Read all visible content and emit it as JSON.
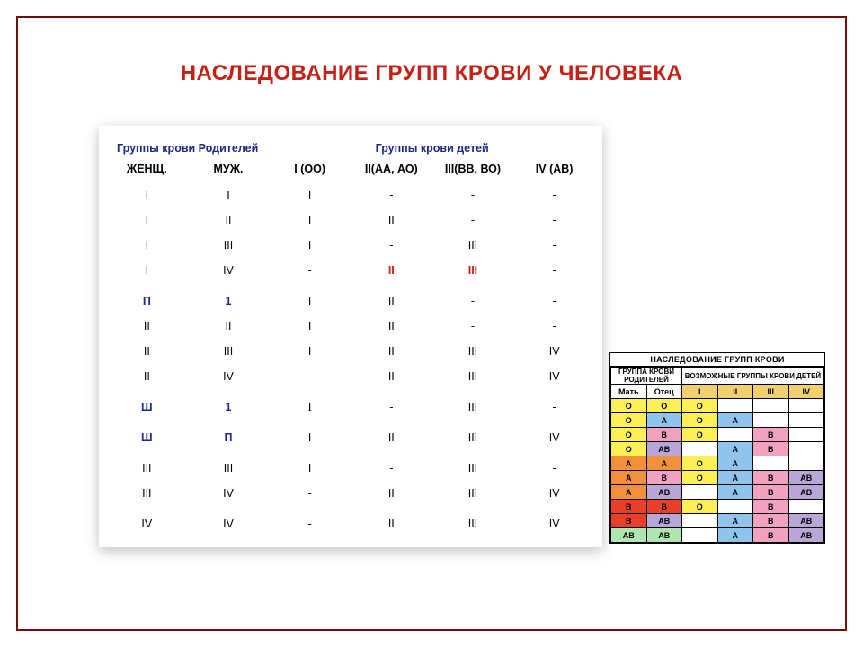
{
  "colors": {
    "title_red": "#c81e14",
    "header_blue": "#1a2a8a",
    "cell_blue": "#1a2a8a",
    "cell_red": "#c81e14",
    "side_yellow": "#fdf056",
    "side_lblue": "#8fc5ec",
    "side_pink": "#f2a2c0",
    "side_purple": "#b8a6d6",
    "side_orange": "#f2903a",
    "side_red": "#e83e2a",
    "side_green": "#aee6b0",
    "side_roman_bg": "#f2d070"
  },
  "title": "НАСЛЕДОВАНИЕ ГРУПП КРОВИ У ЧЕЛОВЕКА",
  "group_headers": {
    "parents": "Группы крови Родителей",
    "children": "Группы крови детей"
  },
  "col_headers": [
    "ЖЕНЩ.",
    "МУЖ.",
    "I (ОО)",
    "II(АА, АО)",
    "III(ВВ, ВО)",
    "IV (АВ)"
  ],
  "rows": [
    [
      {
        "t": "I"
      },
      {
        "t": "I"
      },
      {
        "t": "I"
      },
      {
        "t": "-"
      },
      {
        "t": "-"
      },
      {
        "t": "-"
      }
    ],
    [
      {
        "t": "I"
      },
      {
        "t": "II"
      },
      {
        "t": "I"
      },
      {
        "t": "II"
      },
      {
        "t": "-"
      },
      {
        "t": "-"
      }
    ],
    [
      {
        "t": "I"
      },
      {
        "t": "III"
      },
      {
        "t": "I"
      },
      {
        "t": "-"
      },
      {
        "t": "III"
      },
      {
        "t": "-"
      }
    ],
    [
      {
        "t": "I"
      },
      {
        "t": "IV"
      },
      {
        "t": "-"
      },
      {
        "t": "II",
        "c": "red"
      },
      {
        "t": "III",
        "c": "red"
      },
      {
        "t": "-"
      }
    ],
    [
      {
        "t": "П",
        "c": "blue"
      },
      {
        "t": "1",
        "c": "blue"
      },
      {
        "t": "I"
      },
      {
        "t": "II"
      },
      {
        "t": "-"
      },
      {
        "t": "-"
      }
    ],
    [
      {
        "t": "II"
      },
      {
        "t": "II"
      },
      {
        "t": "I"
      },
      {
        "t": "II"
      },
      {
        "t": "-"
      },
      {
        "t": "-"
      }
    ],
    [
      {
        "t": "II"
      },
      {
        "t": "III"
      },
      {
        "t": "I"
      },
      {
        "t": "II"
      },
      {
        "t": "III"
      },
      {
        "t": "IV"
      }
    ],
    [
      {
        "t": "II"
      },
      {
        "t": "IV"
      },
      {
        "t": "-"
      },
      {
        "t": "II"
      },
      {
        "t": "III"
      },
      {
        "t": "IV"
      }
    ],
    [
      {
        "t": "Ш",
        "c": "blue"
      },
      {
        "t": "1",
        "c": "blue"
      },
      {
        "t": "I",
        "cls": "big-i"
      },
      {
        "t": "-"
      },
      {
        "t": "III"
      },
      {
        "t": "-"
      }
    ],
    [
      {
        "t": "Ш",
        "c": "blue"
      },
      {
        "t": "П",
        "c": "blue"
      },
      {
        "t": "I"
      },
      {
        "t": "II"
      },
      {
        "t": "III"
      },
      {
        "t": "IV"
      }
    ],
    [
      {
        "t": "III"
      },
      {
        "t": "III"
      },
      {
        "t": "I"
      },
      {
        "t": "-"
      },
      {
        "t": "III"
      },
      {
        "t": "-"
      }
    ],
    [
      {
        "t": "III"
      },
      {
        "t": "IV"
      },
      {
        "t": "-"
      },
      {
        "t": "II"
      },
      {
        "t": "III"
      },
      {
        "t": "IV"
      }
    ],
    [
      {
        "t": "IV"
      },
      {
        "t": "IV"
      },
      {
        "t": "-"
      },
      {
        "t": "II"
      },
      {
        "t": "III"
      },
      {
        "t": "IV"
      }
    ]
  ],
  "row_extra_space_after": [
    3,
    7,
    8,
    9,
    11
  ],
  "side": {
    "title": "НАСЛЕДОВАНИЕ ГРУПП КРОВИ",
    "sub_parent": "ГРУППА КРОВИ РОДИТЕЛЕЙ",
    "sub_child": "ВОЗМОЖНЫЕ ГРУППЫ КРОВИ ДЕТЕЙ",
    "parent_cols": [
      "Мать",
      "Отец"
    ],
    "child_cols": [
      "I",
      "II",
      "III",
      "IV"
    ],
    "rows": [
      {
        "p": [
          "О",
          "О"
        ],
        "pc": [
          "yellow",
          "yellow"
        ],
        "c": [
          {
            "t": "О",
            "bg": "yellow"
          },
          {
            "t": ""
          },
          {
            "t": ""
          },
          {
            "t": ""
          }
        ]
      },
      {
        "p": [
          "О",
          "А"
        ],
        "pc": [
          "yellow",
          "lblue"
        ],
        "c": [
          {
            "t": "О",
            "bg": "yellow"
          },
          {
            "t": "А",
            "bg": "lblue"
          },
          {
            "t": ""
          },
          {
            "t": ""
          }
        ]
      },
      {
        "p": [
          "О",
          "В"
        ],
        "pc": [
          "yellow",
          "pink"
        ],
        "c": [
          {
            "t": "О",
            "bg": "yellow"
          },
          {
            "t": ""
          },
          {
            "t": "В",
            "bg": "pink"
          },
          {
            "t": ""
          }
        ]
      },
      {
        "p": [
          "О",
          "АВ"
        ],
        "pc": [
          "yellow",
          "purple"
        ],
        "c": [
          {
            "t": ""
          },
          {
            "t": "А",
            "bg": "lblue"
          },
          {
            "t": "В",
            "bg": "pink"
          },
          {
            "t": ""
          }
        ]
      },
      {
        "p": [
          "А",
          "А"
        ],
        "pc": [
          "orange",
          "orange"
        ],
        "c": [
          {
            "t": "О",
            "bg": "yellow"
          },
          {
            "t": "А",
            "bg": "lblue"
          },
          {
            "t": ""
          },
          {
            "t": ""
          }
        ]
      },
      {
        "p": [
          "А",
          "В"
        ],
        "pc": [
          "orange",
          "pink"
        ],
        "c": [
          {
            "t": "О",
            "bg": "yellow"
          },
          {
            "t": "А",
            "bg": "lblue"
          },
          {
            "t": "В",
            "bg": "pink"
          },
          {
            "t": "АВ",
            "bg": "purple"
          }
        ]
      },
      {
        "p": [
          "А",
          "АВ"
        ],
        "pc": [
          "orange",
          "purple"
        ],
        "c": [
          {
            "t": ""
          },
          {
            "t": "А",
            "bg": "lblue"
          },
          {
            "t": "В",
            "bg": "pink"
          },
          {
            "t": "АВ",
            "bg": "purple"
          }
        ]
      },
      {
        "p": [
          "В",
          "В"
        ],
        "pc": [
          "red",
          "red"
        ],
        "c": [
          {
            "t": "О",
            "bg": "yellow"
          },
          {
            "t": ""
          },
          {
            "t": "В",
            "bg": "pink"
          },
          {
            "t": ""
          }
        ]
      },
      {
        "p": [
          "В",
          "АВ"
        ],
        "pc": [
          "red",
          "purple"
        ],
        "c": [
          {
            "t": ""
          },
          {
            "t": "А",
            "bg": "lblue"
          },
          {
            "t": "В",
            "bg": "pink"
          },
          {
            "t": "АВ",
            "bg": "purple"
          }
        ]
      },
      {
        "p": [
          "АВ",
          "АВ"
        ],
        "pc": [
          "green",
          "green"
        ],
        "c": [
          {
            "t": ""
          },
          {
            "t": "А",
            "bg": "lblue"
          },
          {
            "t": "В",
            "bg": "pink"
          },
          {
            "t": "АВ",
            "bg": "purple"
          }
        ]
      }
    ]
  }
}
